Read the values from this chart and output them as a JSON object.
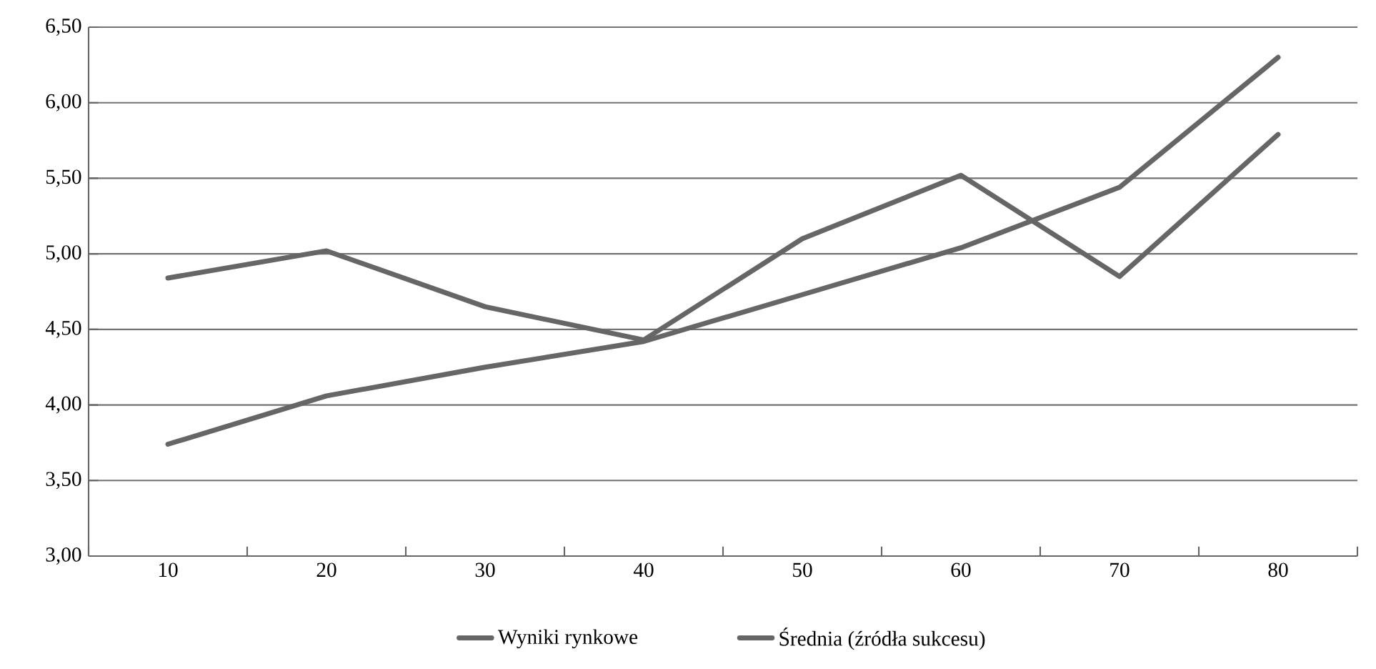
{
  "chart_data": {
    "type": "line",
    "categories": [
      "10",
      "20",
      "30",
      "40",
      "50",
      "60",
      "70",
      "80"
    ],
    "series": [
      {
        "name": "Wyniki rynkowe",
        "color": "#666666",
        "values": [
          4.84,
          5.02,
          4.65,
          4.43,
          5.1,
          5.52,
          4.85,
          5.79
        ]
      },
      {
        "name": "Średnia (źródła sukcesu)",
        "color": "#666666",
        "values": [
          3.74,
          4.06,
          4.25,
          4.42,
          4.73,
          5.04,
          5.44,
          6.3
        ]
      }
    ],
    "ylim": [
      3,
      6.5
    ],
    "yticks": [
      {
        "value": 3,
        "label": "3,00"
      },
      {
        "value": 3.5,
        "label": "3,50"
      },
      {
        "value": 4,
        "label": "4,00"
      },
      {
        "value": 4.5,
        "label": "4,50"
      },
      {
        "value": 5,
        "label": "5,00"
      },
      {
        "value": 5.5,
        "label": "5,50"
      },
      {
        "value": 6,
        "label": "6,00"
      },
      {
        "value": 6.5,
        "label": "6,50"
      }
    ],
    "grid": "y",
    "legend": "bottom",
    "marker": "none",
    "line_style": "solid"
  }
}
